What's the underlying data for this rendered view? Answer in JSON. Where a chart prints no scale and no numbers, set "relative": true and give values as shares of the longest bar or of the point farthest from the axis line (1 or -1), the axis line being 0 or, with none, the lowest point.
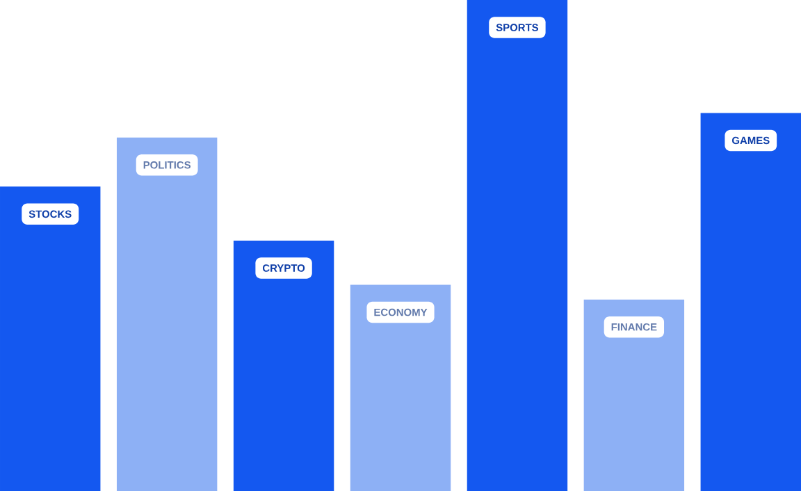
{
  "chart_data": {
    "type": "bar",
    "relative": true,
    "categories": [
      "STOCKS",
      "POLITICS",
      "CRYPTO",
      "ECONOMY",
      "SPORTS",
      "FINANCE",
      "GAMES"
    ],
    "values": [
      0.62,
      0.72,
      0.51,
      0.42,
      1,
      0.39,
      0.77
    ],
    "colors": [
      "#1458f0",
      "#8db0f5",
      "#1458f0",
      "#8db0f5",
      "#1458f0",
      "#8db0f5",
      "#1458f0"
    ]
  }
}
